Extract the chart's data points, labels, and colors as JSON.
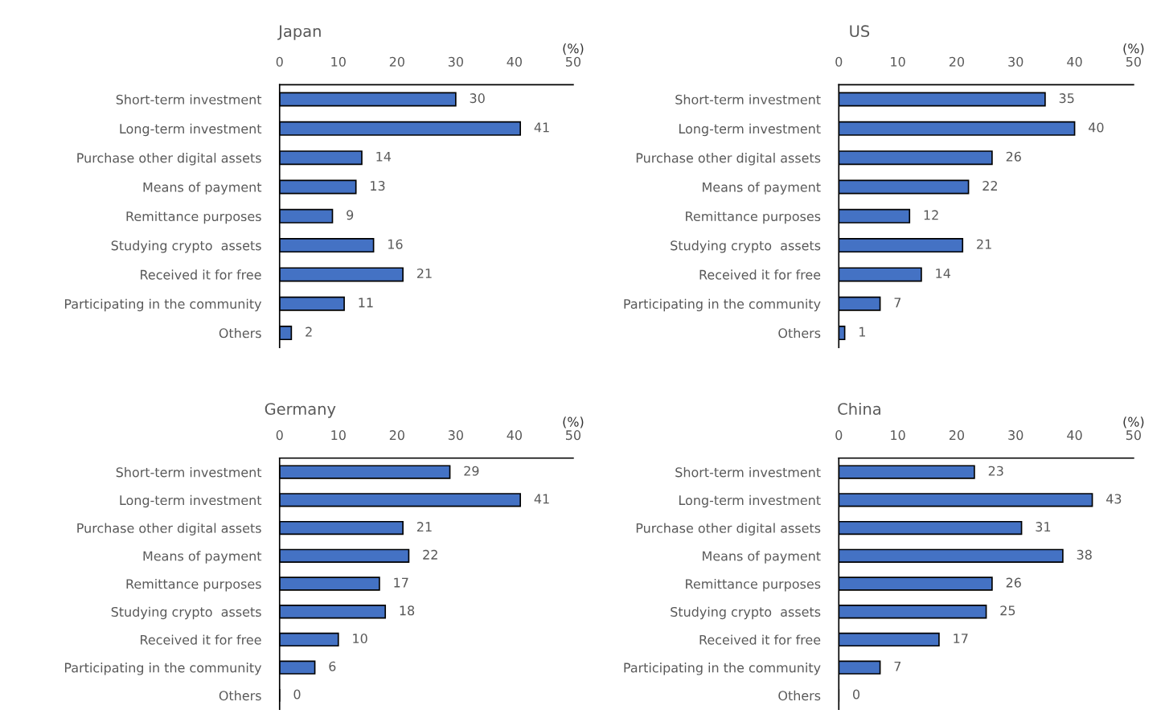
{
  "chart_data": [
    {
      "type": "bar",
      "orientation": "horizontal",
      "title": "Japan",
      "xlabel": "(%)",
      "categories": [
        "Short-term investment",
        "Long-term investment",
        "Purchase other digital assets",
        "Means of payment",
        "Remittance purposes",
        "Studying crypto  assets",
        "Received it for free",
        "Participating in the community",
        "Others"
      ],
      "values": [
        30,
        41,
        14,
        13,
        9,
        16,
        21,
        11,
        2
      ],
      "color": "#4472c4",
      "xlim": [
        0,
        50
      ],
      "xticks": [
        0,
        10,
        20,
        30,
        40,
        50
      ],
      "data_labels": true,
      "grid": false
    },
    {
      "type": "bar",
      "orientation": "horizontal",
      "title": "US",
      "xlabel": "(%)",
      "categories": [
        "Short-term investment",
        "Long-term investment",
        "Purchase other digital assets",
        "Means of payment",
        "Remittance purposes",
        "Studying crypto  assets",
        "Received it for free",
        "Participating in the community",
        "Others"
      ],
      "values": [
        35,
        40,
        26,
        22,
        12,
        21,
        14,
        7,
        1
      ],
      "color": "#4472c4",
      "xlim": [
        0,
        50
      ],
      "xticks": [
        0,
        10,
        20,
        30,
        40,
        50
      ],
      "data_labels": true,
      "grid": false
    },
    {
      "type": "bar",
      "orientation": "horizontal",
      "title": "Germany",
      "xlabel": "(%)",
      "categories": [
        "Short-term investment",
        "Long-term investment",
        "Purchase other digital assets",
        "Means of payment",
        "Remittance purposes",
        "Studying crypto  assets",
        "Received it for free",
        "Participating in the community",
        "Others"
      ],
      "values": [
        29,
        41,
        21,
        22,
        17,
        18,
        10,
        6,
        0
      ],
      "color": "#4472c4",
      "xlim": [
        0,
        50
      ],
      "xticks": [
        0,
        10,
        20,
        30,
        40,
        50
      ],
      "data_labels": true,
      "grid": false
    },
    {
      "type": "bar",
      "orientation": "horizontal",
      "title": "China",
      "xlabel": "(%)",
      "categories": [
        "Short-term investment",
        "Long-term investment",
        "Purchase other digital assets",
        "Means of payment",
        "Remittance purposes",
        "Studying crypto  assets",
        "Received it for free",
        "Participating in the community",
        "Others"
      ],
      "values": [
        23,
        43,
        31,
        38,
        26,
        25,
        17,
        7,
        0
      ],
      "color": "#4472c4",
      "xlim": [
        0,
        50
      ],
      "xticks": [
        0,
        10,
        20,
        30,
        40,
        50
      ],
      "data_labels": true,
      "grid": false
    }
  ]
}
